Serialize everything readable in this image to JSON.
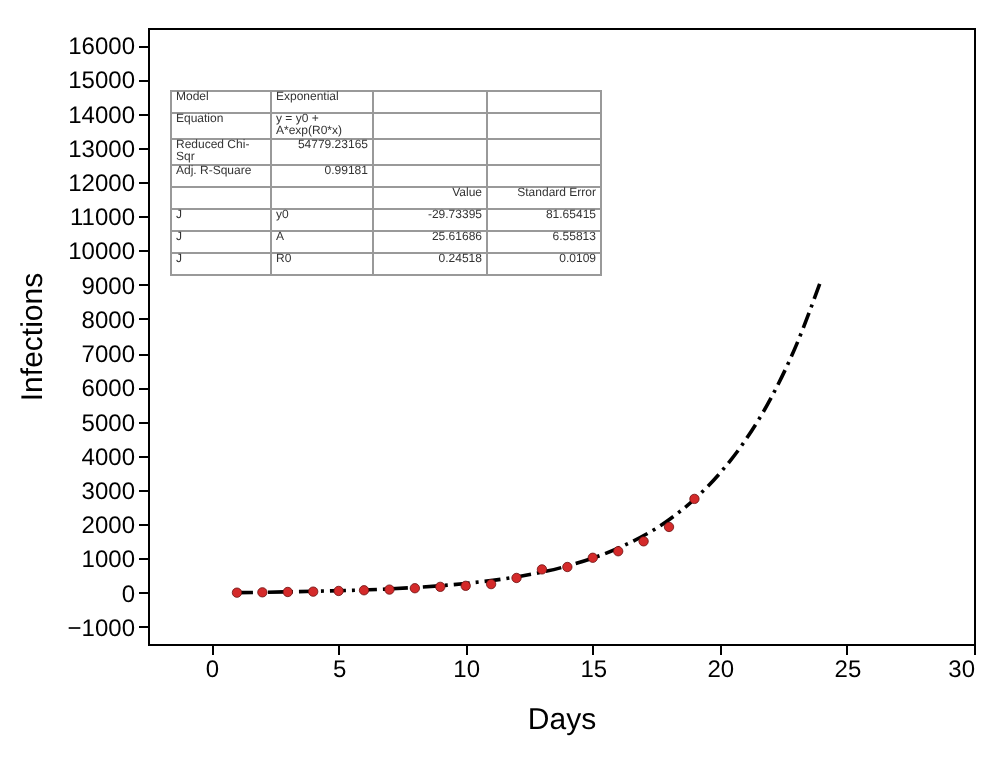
{
  "chart_data": {
    "type": "scatter",
    "xlabel": "Days",
    "ylabel": "Infections",
    "xlim": [
      -2.5,
      30
    ],
    "xticks": [
      0,
      5,
      10,
      15,
      20,
      25,
      30
    ],
    "ylim": [
      -1500,
      16500
    ],
    "yticks": [
      -1000,
      0,
      1000,
      2000,
      3000,
      4000,
      5000,
      6000,
      7000,
      8000,
      9000,
      10000,
      11000,
      12000,
      13000,
      14000,
      15000,
      16000
    ],
    "grid": false,
    "marker": "circle",
    "series": [
      {
        "color": "#d42a2a",
        "x": [
          1,
          2,
          3,
          4,
          5,
          6,
          7,
          8,
          9,
          10,
          11,
          12,
          13,
          14,
          15,
          16,
          17,
          18,
          19
        ],
        "values": [
          0,
          10,
          20,
          30,
          50,
          70,
          90,
          130,
          170,
          200,
          250,
          430,
          680,
          750,
          1020,
          1210,
          1500,
          1920,
          2740
        ]
      },
      {
        "type": "line",
        "color": "#000000",
        "line_style": "dashed",
        "marker": "none",
        "x": [
          1,
          4,
          7,
          10,
          12,
          14,
          16,
          18,
          19,
          20,
          21,
          22,
          23,
          24
        ],
        "values": [
          0,
          40,
          110,
          270,
          460,
          780,
          1300,
          2130,
          2730,
          3490,
          4450,
          5670,
          7220,
          9170
        ]
      }
    ],
    "annotations": [
      "Model",
      "Exponential",
      "Equation",
      "y = y0 + A*exp(R0*x)",
      "Reduced Chi-Sqr",
      "54779.23165",
      "Adj. R-Square",
      "0.99181",
      "Value",
      "Standard Error",
      "J",
      "y0",
      "-29.73395",
      "81.65415",
      "J",
      "A",
      "25.61686",
      "6.55813",
      "J",
      "R0",
      "0.24518",
      "0.0109"
    ]
  }
}
